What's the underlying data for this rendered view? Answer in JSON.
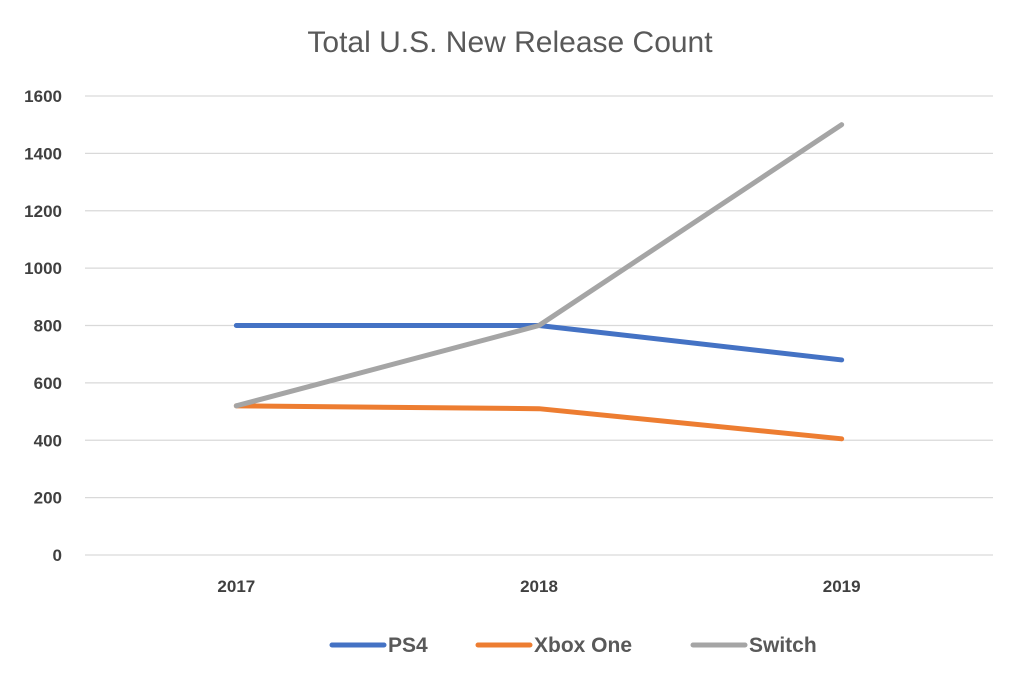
{
  "chart_data": {
    "type": "line",
    "title": "Total U.S. New Release Count",
    "xlabel": "",
    "ylabel": "",
    "categories": [
      "2017",
      "2018",
      "2019"
    ],
    "ylim": [
      0,
      1600
    ],
    "yticks": [
      0,
      200,
      400,
      600,
      800,
      1000,
      1200,
      1400,
      1600
    ],
    "grid": true,
    "legend": "bottom",
    "series": [
      {
        "name": "PS4",
        "color": "#4472C4",
        "values": [
          800,
          800,
          680
        ]
      },
      {
        "name": "Xbox One",
        "color": "#ED7D31",
        "values": [
          520,
          510,
          405
        ]
      },
      {
        "name": "Switch",
        "color": "#A5A5A5",
        "values": [
          520,
          800,
          1500
        ]
      }
    ]
  }
}
